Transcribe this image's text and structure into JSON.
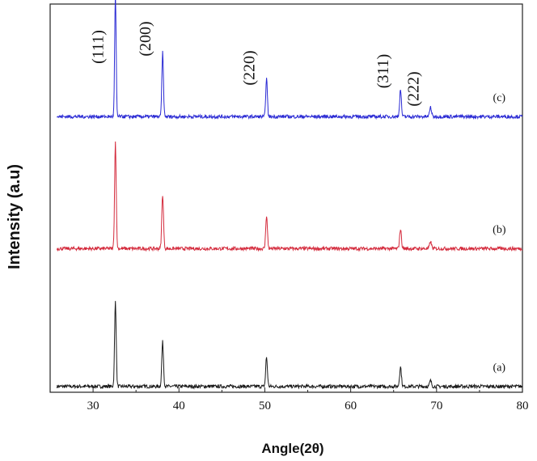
{
  "chart_data": {
    "type": "line",
    "title": "",
    "xlabel": "Angle(2θ)",
    "ylabel": "Intensity (a.u)",
    "xlim": [
      25,
      80
    ],
    "xticks": [
      30,
      40,
      50,
      60,
      70,
      80
    ],
    "ylim": [
      0,
      100
    ],
    "yticks_shown": false,
    "grid": false,
    "legend": "inline labels at right end of each trace",
    "peak_annotations": [
      {
        "label": "(111)",
        "x": 32.6
      },
      {
        "label": "(200)",
        "x": 38.1
      },
      {
        "label": "(220)",
        "x": 50.2
      },
      {
        "label": "(311)",
        "x": 65.8
      },
      {
        "label": "(222)",
        "x": 69.3
      }
    ],
    "series": [
      {
        "name": "(a)",
        "color": "#1a1a1a",
        "baseline": 1.5,
        "noise": 0.45,
        "peaks": [
          [
            32.6,
            22.0,
            0.13
          ],
          [
            38.1,
            11.5,
            0.14
          ],
          [
            50.2,
            7.5,
            0.14
          ],
          [
            65.8,
            5.0,
            0.15
          ],
          [
            69.3,
            1.5,
            0.15
          ]
        ]
      },
      {
        "name": "(b)",
        "color": "#d42a3c",
        "baseline": 37.0,
        "noise": 0.45,
        "peaks": [
          [
            32.6,
            27.5,
            0.13
          ],
          [
            38.1,
            14.0,
            0.14
          ],
          [
            50.2,
            8.5,
            0.14
          ],
          [
            65.8,
            5.0,
            0.15
          ],
          [
            69.3,
            1.8,
            0.15
          ]
        ]
      },
      {
        "name": "(c)",
        "color": "#2a2ad4",
        "baseline": 71.0,
        "noise": 0.45,
        "peaks": [
          [
            32.6,
            31.5,
            0.12
          ],
          [
            38.1,
            16.5,
            0.13
          ],
          [
            50.2,
            10.0,
            0.13
          ],
          [
            65.8,
            7.0,
            0.14
          ],
          [
            69.3,
            2.5,
            0.15
          ]
        ]
      }
    ]
  }
}
